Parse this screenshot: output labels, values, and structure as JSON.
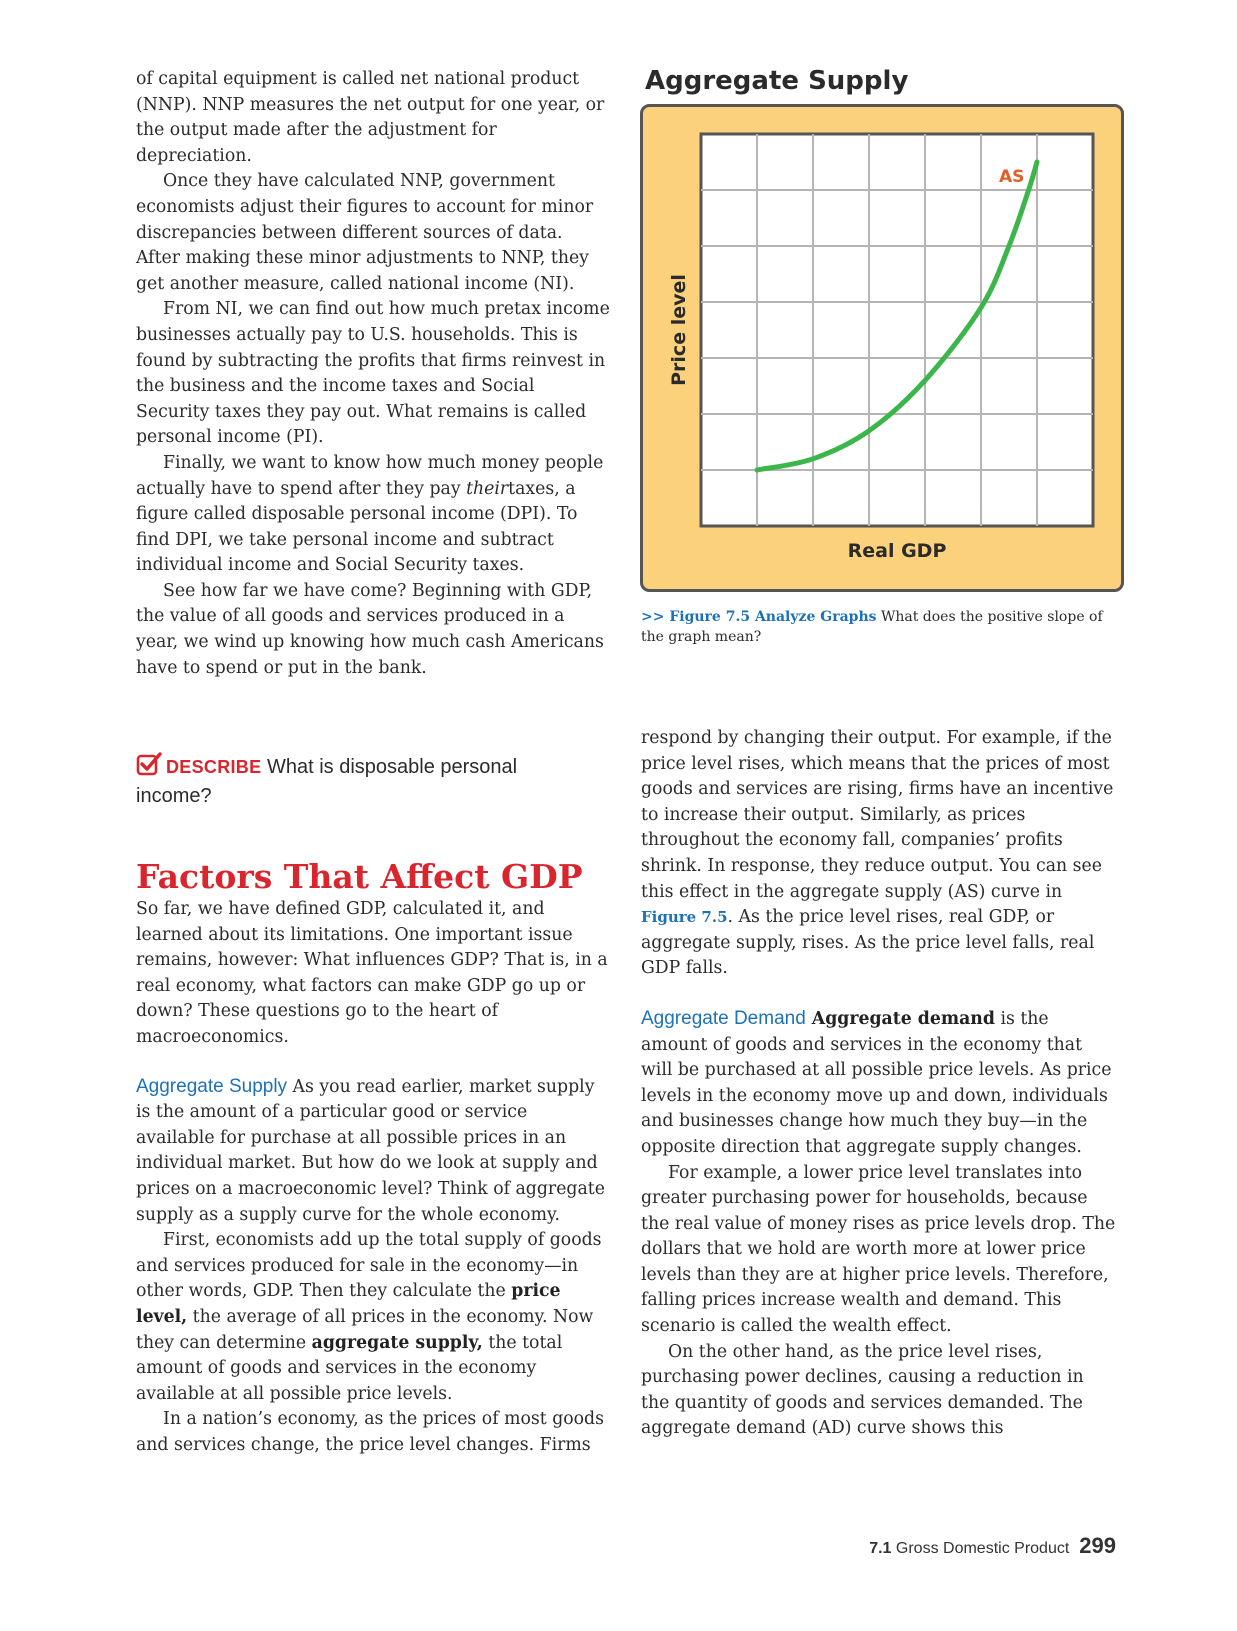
{
  "left": {
    "p1": "of capital equipment is called net national product (NNP). NNP measures the net output for one year, or the output made after the adjustment for depreciation.",
    "p2": "Once they have calculated NNP, government economists adjust their figures to account for minor discrepancies between different sources of data. After making these minor adjustments to NNP, they get another measure, called national income (NI).",
    "p3": "From NI, we can find out how much pretax income businesses actually pay to U.S. households. This is found by subtracting the profits that firms reinvest in the business and the income taxes and Social Security taxes they pay out. What remains is called personal income (PI).",
    "p4a": "Finally, we want to know how much money people actually have to spend after they pay ",
    "p4_em": "their",
    "p4b": "taxes, a figure called disposable personal income (DPI). To find DPI, we take personal income and subtract individual income and Social Security taxes.",
    "p5": "See how far we have come? Beginning with GDP, the value of all goods and services produced in a year, we wind up knowing how much cash Americans have to spend or put in the bank."
  },
  "describe": {
    "tag": "DESCRIBE",
    "text": " What is disposable personal income?"
  },
  "section": {
    "heading": "Factors That Affect GDP",
    "intro": "So far, we have defined GDP, calculated it, and learned about its limitations. One important issue remains, however: What influences GDP? That is, in a real economy, what factors can make GDP go up or down? These questions go to the heart of macroeconomics.",
    "as_head": "Aggregate Supply",
    "as_p1": " As you read earlier, market supply is the amount of a particular good or service available for purchase at all possible prices in an individual market. But how do we look at supply and prices on a macroeconomic level? Think of aggregate supply as a supply curve for the whole economy.",
    "as_p2a": "First, economists add up the total supply of goods and services produced for sale in the economy—in other words, GDP. Then they calculate the ",
    "as_p2_b1": "price level,",
    "as_p2b": " the average of all prices in the economy. Now they can determine ",
    "as_p2_b2": "aggregate supply,",
    "as_p2c": " the total amount of goods and services in the economy available at all possible price levels.",
    "as_p3": "In a nation’s economy, as the prices of most goods and services change, the price level changes. Firms"
  },
  "right": {
    "p1a": "respond by changing their output. For example, if the price level rises, which means that the prices of most goods and services are rising, firms have an incentive to increase their output. Similarly, as prices throughout the economy fall, companies’ profits shrink. In response, they reduce output. You can see this effect in the aggregate supply (AS) curve in ",
    "p1_ref": "Figure 7.5",
    "p1b": ". As the price level rises, real GDP, or aggregate supply, rises. As the price level falls, real GDP falls.",
    "ad_head": "Aggregate Demand",
    "ad_bold": " Aggregate demand",
    "ad_p1": " is the amount of goods and services in the economy that will be purchased at all possible price levels. As price levels in the economy move up and down, individuals and businesses change how much they buy—in the opposite direction that aggregate supply changes.",
    "ad_p2": "For example, a lower price level translates into greater purchasing power for households, because the real value of money rises as price levels drop. The dollars that we hold are worth more at lower price levels than they are at higher price levels. Therefore, falling prices increase wealth and demand. This scenario is called the wealth effect.",
    "ad_p3": "On the other hand, as the price level rises, purchasing power declines, causing a reduction in the quantity of goods and services demanded. The aggregate demand (AD) curve shows this"
  },
  "figure": {
    "title": "Aggregate Supply",
    "caption_label": ">> Figure 7.5 Analyze Graphs",
    "caption_text": "  What does the positive slope of the graph mean?"
  },
  "chart_data": {
    "type": "line",
    "title": "Aggregate Supply",
    "xlabel": "Real GDP",
    "ylabel": "Price level",
    "grid": true,
    "x_gridlines": 7,
    "y_gridlines": 7,
    "series": [
      {
        "name": "AS",
        "color": "#3cb64a",
        "x": [
          1.0,
          2.0,
          3.0,
          4.0,
          5.0,
          5.5,
          5.85,
          6.0
        ],
        "y": [
          1.0,
          1.2,
          1.7,
          2.6,
          3.9,
          5.0,
          6.0,
          6.5
        ]
      }
    ],
    "xlim": [
      0,
      7
    ],
    "ylim": [
      0,
      7
    ]
  },
  "colors": {
    "frame_fill": "#fcd17c",
    "frame_border": "#555555",
    "curve": "#3cb64a",
    "curve_label": "#e35d2a",
    "heading_red": "#d9262e",
    "subhead_blue": "#1d71b8"
  },
  "footer": {
    "section_num": "7.1",
    "chapter_title": " Gross Domestic Product",
    "page": "299"
  }
}
